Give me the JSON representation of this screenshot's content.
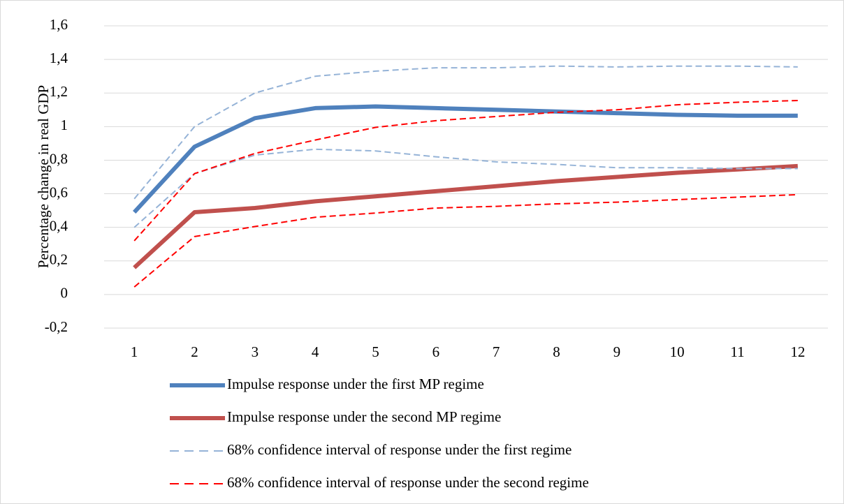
{
  "chart_data": {
    "type": "line",
    "y_label": "Percentage change in real GDP",
    "categories": [
      "1",
      "2",
      "3",
      "4",
      "5",
      "6",
      "7",
      "8",
      "9",
      "10",
      "11",
      "12"
    ],
    "ylim": [
      -0.2,
      1.6
    ],
    "yticks": [
      {
        "value": -0.2,
        "label": "-0,2"
      },
      0,
      {
        "value": 0.2,
        "label": "0,2"
      },
      {
        "value": 0.4,
        "label": "0,4"
      },
      {
        "value": 0.6,
        "label": "0,6"
      },
      {
        "value": 0.8,
        "label": "0,8"
      },
      1,
      {
        "value": 1.2,
        "label": "1,2"
      },
      {
        "value": 1.4,
        "label": "1,4"
      },
      {
        "value": 1.6,
        "label": "1,6"
      }
    ],
    "grid": true,
    "legend": "bottom",
    "series": [
      {
        "name": "Impulse response under the first MP regime",
        "color": "#4f81bd",
        "width": 6,
        "dashed": false,
        "values": [
          0.49,
          0.88,
          1.05,
          1.11,
          1.12,
          1.11,
          1.1,
          1.09,
          1.08,
          1.07,
          1.065,
          1.065
        ]
      },
      {
        "name": "Impulse response under the second MP regime",
        "color": "#c0504d",
        "width": 6,
        "dashed": false,
        "values": [
          0.16,
          0.49,
          0.515,
          0.555,
          0.585,
          0.615,
          0.645,
          0.675,
          0.7,
          0.725,
          0.745,
          0.765
        ]
      },
      {
        "name": "68% confidence interval of response under the first regime",
        "color": "#95b3d7",
        "width": 2,
        "dashed": true,
        "values": [
          0.57,
          1.0,
          1.2,
          1.3,
          1.33,
          1.35,
          1.35,
          1.36,
          1.355,
          1.36,
          1.36,
          1.355
        ]
      },
      {
        "color": "#95b3d7",
        "width": 2,
        "dashed": true,
        "values": [
          0.4,
          0.72,
          0.83,
          0.865,
          0.855,
          0.82,
          0.79,
          0.775,
          0.755,
          0.755,
          0.75,
          0.75
        ]
      },
      {
        "name": "68% confidence interval of response under the second regime",
        "color": "#ff0000",
        "width": 2,
        "dashed": true,
        "values": [
          0.32,
          0.72,
          0.84,
          0.92,
          0.995,
          1.035,
          1.06,
          1.085,
          1.1,
          1.13,
          1.145,
          1.155
        ]
      },
      {
        "color": "#ff0000",
        "width": 2,
        "dashed": true,
        "values": [
          0.045,
          0.345,
          0.405,
          0.46,
          0.485,
          0.515,
          0.525,
          0.54,
          0.55,
          0.565,
          0.58,
          0.595
        ]
      }
    ]
  }
}
